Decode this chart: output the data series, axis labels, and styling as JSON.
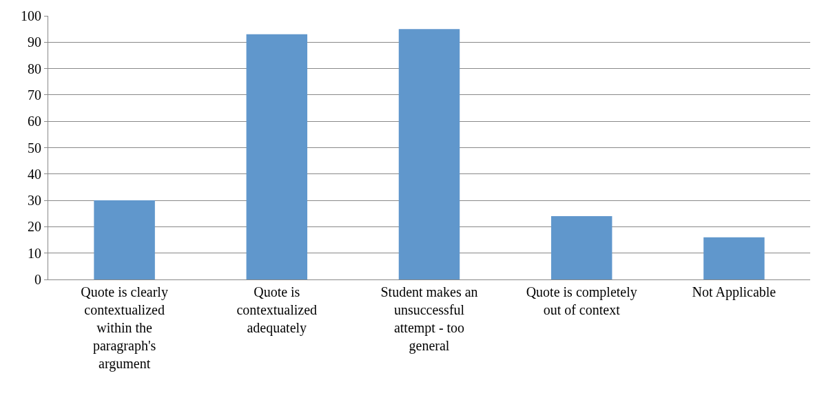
{
  "chart_data": {
    "type": "bar",
    "categories": [
      "Quote is clearly contextualized within the paragraph's argument",
      "Quote is contextualized adequately",
      "Student makes an unsuccessful attempt - too general",
      "Quote is completely out of context",
      "Not Applicable"
    ],
    "values": [
      30,
      93,
      95,
      24,
      16
    ],
    "color": "#6097cc",
    "ylim": [
      0,
      100
    ],
    "yticks": [
      0,
      10,
      20,
      30,
      40,
      50,
      60,
      70,
      80,
      90,
      100
    ],
    "grid": "y",
    "legend": false
  }
}
